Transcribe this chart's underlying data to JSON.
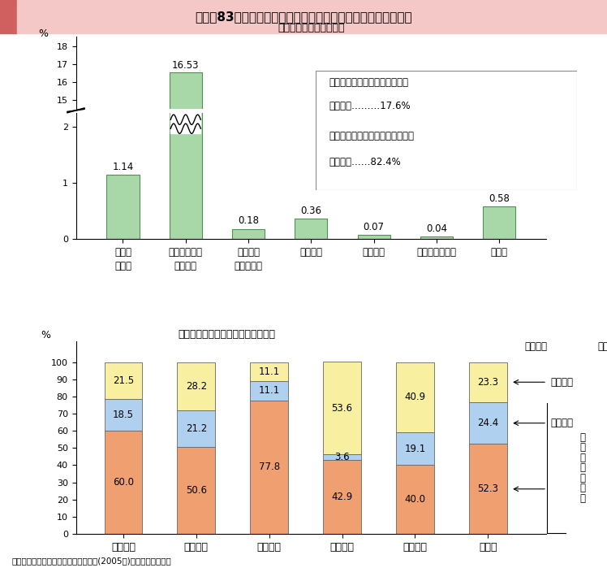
{
  "title": "図３－83　販売農家と農業法人の農業生産関連事業の取組状況",
  "top_subtitle": "（販売農家の取組状況）",
  "bottom_subtitle": "（農業法人の主位部門別取組状況）",
  "bar_categories": [
    "農産物\nの加工",
    "店や消費者に\n直接販売",
    "貸農園・\n体験農園等",
    "観光農園",
    "農家民宿",
    "農家レストラン",
    "その他"
  ],
  "bar_values": [
    1.14,
    16.53,
    0.18,
    0.36,
    0.07,
    0.04,
    0.58
  ],
  "bar_color": "#a8d8a8",
  "bar_edge_color": "#509050",
  "legend_text1_line1": "農業生産関連事業を行っている",
  "legend_text1_line2": "販売農家………17.6%",
  "legend_text2_line1": "農業生産関連事業を行っていない",
  "legend_text2_line2": "販売農家……82.4%",
  "stacked_categories": [
    "稲作主体",
    "野菜主体",
    "果樹主体",
    "花き主体",
    "畜産主体",
    "その他"
  ],
  "stacked_bottom": [
    60.0,
    50.6,
    77.8,
    42.9,
    40.0,
    52.3
  ],
  "stacked_mid": [
    18.5,
    21.2,
    11.1,
    3.6,
    19.1,
    24.4
  ],
  "stacked_top": [
    21.5,
    28.2,
    11.1,
    53.6,
    40.9,
    23.3
  ],
  "stacked_color_bottom": "#f0a070",
  "stacked_color_mid": "#b0d0f0",
  "stacked_color_top": "#f8f0a0",
  "stacked_edge_color": "#666666",
  "source_text": "資料：農林水産省「農林業センサス」(2005年)、農林水産省調べ",
  "title_left_color": "#d06060",
  "title_bg_color": "#f5c8c8",
  "annotation_taking": "取\nり\n組\nん\nで\nい\nる",
  "annotation_planned": "取組予定",
  "annotation_none": "予定なし"
}
